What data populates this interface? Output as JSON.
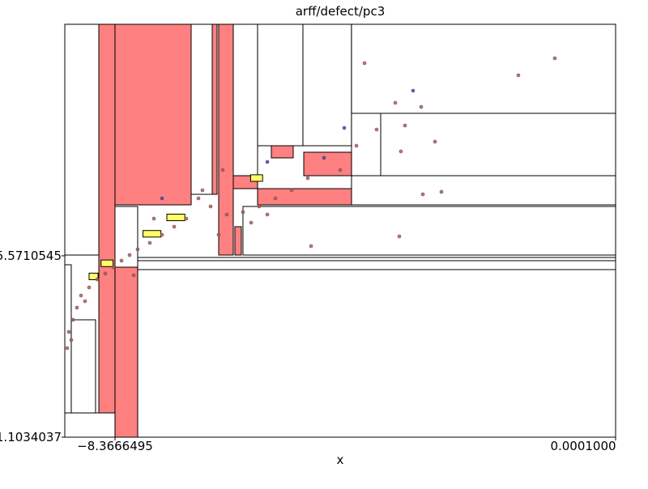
{
  "chart_data": {
    "type": "scatter",
    "title": "arff/defect/pc3",
    "xlabel": "x",
    "xlim": [
      -9.206,
      0.0001
    ],
    "ylim": [
      -11.1034037,
      1.49
    ],
    "xticks": [
      {
        "value": -8.3666495,
        "label": "−8.3666495"
      },
      {
        "value": 0.0001,
        "label": "0.0001000"
      }
    ],
    "yticks": [
      {
        "value": -11.1034037,
        "label": "−11.1034037"
      },
      {
        "value": -5.5710545,
        "label": "−5.5710545"
      }
    ],
    "regions": [
      {
        "x": [
          -9.206,
          -8.637
        ],
        "y": [
          -5.548,
          1.49
        ],
        "color": "#ffffff"
      },
      {
        "x": [
          -8.637,
          -8.367
        ],
        "y": [
          -11.1034037,
          1.49
        ],
        "color": "#ff8080"
      },
      {
        "x": [
          -8.367,
          -7.094
        ],
        "y": [
          -4.017,
          1.49
        ],
        "color": "#ff8080"
      },
      {
        "x": [
          -7.094,
          -6.742
        ],
        "y": [
          -3.696,
          1.49
        ],
        "color": "#ffffff"
      },
      {
        "x": [
          -6.742,
          -6.661
        ],
        "y": [
          -3.696,
          1.49
        ],
        "color": "#ff8080"
      },
      {
        "x": [
          -6.634,
          -6.39
        ],
        "y": [
          -5.548,
          1.49
        ],
        "color": "#ff8080"
      },
      {
        "x": [
          -6.39,
          -5.984
        ],
        "y": [
          -3.128,
          1.49
        ],
        "color": "#ffffff"
      },
      {
        "x": [
          -5.984,
          -5.226
        ],
        "y": [
          -2.214,
          1.49
        ],
        "color": "#ffffff"
      },
      {
        "x": [
          -5.226,
          -4.414
        ],
        "y": [
          -2.214,
          1.49
        ],
        "color": "#ffffff"
      },
      {
        "x": [
          -4.414,
          -3.926
        ],
        "y": [
          -3.128,
          1.49
        ],
        "color": "#ffffff"
      },
      {
        "x": [
          -4.414,
          0.0001
        ],
        "y": [
          -1.226,
          1.49
        ],
        "color": "#ffffff"
      },
      {
        "x": [
          -3.926,
          0.0001
        ],
        "y": [
          -3.128,
          -1.226
        ],
        "color": "#ffffff"
      },
      {
        "x": [
          -4.414,
          0.0001
        ],
        "y": [
          -4.017,
          -3.128
        ],
        "color": "#ffffff"
      },
      {
        "x": [
          -5.984,
          -4.414
        ],
        "y": [
          -4.017,
          -3.523
        ],
        "color": "#ff8080"
      },
      {
        "x": [
          -5.754,
          -5.388
        ],
        "y": [
          -2.584,
          -2.214
        ],
        "color": "#ff8080"
      },
      {
        "x": [
          -5.212,
          -4.414
        ],
        "y": [
          -3.128,
          -2.412
        ],
        "color": "#ff8080"
      },
      {
        "x": [
          -6.39,
          -5.984
        ],
        "y": [
          -3.523,
          -3.128
        ],
        "color": "#ff8080"
      },
      {
        "x": [
          -6.363,
          -6.255
        ],
        "y": [
          -5.548,
          -4.683
        ],
        "color": "#ff8080"
      },
      {
        "x": [
          -6.228,
          0.0001
        ],
        "y": [
          -5.548,
          -4.066
        ],
        "color": "#ffffff"
      },
      {
        "x": [
          -7.988,
          0.0001
        ],
        "y": [
          -5.72,
          -5.622
        ],
        "color": "#ffffff"
      },
      {
        "x": [
          -7.988,
          0.0001
        ],
        "y": [
          -5.992,
          -5.72
        ],
        "color": "#ffffff"
      },
      {
        "x": [
          -7.988,
          0.0001
        ],
        "y": [
          -11.1034037,
          -5.992
        ],
        "color": "#ffffff"
      },
      {
        "x": [
          -8.367,
          -7.988
        ],
        "y": [
          -11.1034037,
          -5.918
        ],
        "color": "#ff8080"
      },
      {
        "x": [
          -9.206,
          -8.367
        ],
        "y": [
          -11.1034037,
          -10.363
        ],
        "color": "#ffffff"
      },
      {
        "x": [
          -9.206,
          -9.098
        ],
        "y": [
          -10.363,
          -5.844
        ],
        "color": "#ffffff"
      },
      {
        "x": [
          -9.098,
          -8.692
        ],
        "y": [
          -10.363,
          -7.523
        ],
        "color": "#ffffff"
      },
      {
        "x": [
          -8.367,
          -7.988
        ],
        "y": [
          -5.918,
          -4.066
        ],
        "color": "#ffffff"
      },
      {
        "x": [
          -7.5,
          -7.2
        ],
        "y": [
          -4.5,
          -4.3
        ],
        "color": "#ffff66"
      },
      {
        "x": [
          -8.6,
          -8.4
        ],
        "y": [
          -5.9,
          -5.7
        ],
        "color": "#ffff66"
      },
      {
        "x": [
          -7.9,
          -7.6
        ],
        "y": [
          -5.0,
          -4.8
        ],
        "color": "#ffff66"
      },
      {
        "x": [
          -6.1,
          -5.9
        ],
        "y": [
          -3.3,
          -3.1
        ],
        "color": "#ffff66"
      },
      {
        "x": [
          -8.8,
          -8.65
        ],
        "y": [
          -6.3,
          -6.1
        ],
        "color": "#ffff66"
      }
    ],
    "series": [
      {
        "color": "#c0504d",
        "x": [
          -1.016,
          -1.625,
          -4.197,
          -3.682,
          -3.249,
          -3.994,
          -3.52,
          -3.019,
          -3.588,
          -3.222,
          -2.911,
          -3.615,
          -5.09,
          -4.332,
          -4.603,
          -5.145,
          -5.415,
          -5.686,
          -5.957,
          -6.228,
          -6.498,
          -6.769,
          -6.972,
          -7.175,
          -7.378,
          -7.581,
          -7.785,
          -7.988,
          -8.123,
          -8.258,
          -8.394,
          -8.529,
          -8.664,
          -8.8,
          -8.935,
          -9.003,
          -9.071,
          -9.138,
          -9.165,
          -6.566,
          -6.905,
          -5.821,
          -6.092,
          -6.634,
          -7.717,
          -8.055,
          -8.868,
          -9.098
        ],
        "y": [
          0.453,
          -0.066,
          0.305,
          -0.905,
          -1.029,
          -1.72,
          -1.597,
          -2.09,
          -2.387,
          -3.696,
          -3.621,
          -4.98,
          -5.276,
          -2.214,
          -2.955,
          -3.202,
          -3.572,
          -3.819,
          -4.066,
          -4.239,
          -4.313,
          -4.066,
          -3.819,
          -4.436,
          -4.683,
          -4.93,
          -5.177,
          -5.375,
          -5.548,
          -5.72,
          -5.918,
          -6.115,
          -6.288,
          -6.535,
          -6.782,
          -7.153,
          -7.523,
          -7.893,
          -8.387,
          -2.955,
          -3.572,
          -4.313,
          -4.56,
          -4.93,
          -4.436,
          -6.165,
          -6.955,
          -8.14
        ]
      },
      {
        "color": "#3333cc",
        "x": [
          -3.385,
          -4.874,
          -4.535,
          -5.821,
          -7.581
        ],
        "y": [
          -0.535,
          -2.584,
          -1.671,
          -2.708,
          -3.819
        ]
      }
    ]
  }
}
